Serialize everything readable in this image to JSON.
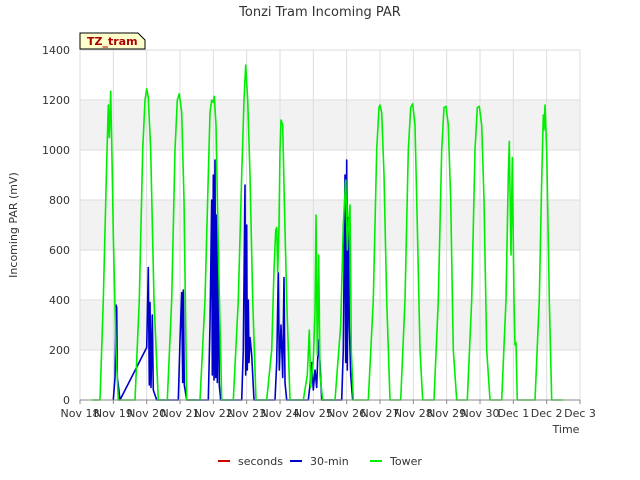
{
  "chart_data": {
    "type": "line",
    "title": "Tonzi Tram Incoming PAR",
    "xlabel": "Time",
    "ylabel": "Incoming PAR (mV)",
    "site_tag": "TZ_tram",
    "xlim": [
      0,
      15
    ],
    "ylim": [
      0,
      1400
    ],
    "x_ticks": [
      0,
      1,
      2,
      3,
      4,
      5,
      6,
      7,
      8,
      9,
      10,
      11,
      12,
      13,
      14,
      15
    ],
    "x_tick_labels": [
      "Nov 18",
      "Nov 19",
      "Nov 20",
      "Nov 21",
      "Nov 22",
      "Nov 23",
      "Nov 24",
      "Nov 25",
      "Nov 26",
      "Nov 27",
      "Nov 28",
      "Nov 29",
      "Nov 30",
      "Dec 1",
      "Dec 2",
      "Dec 3"
    ],
    "y_ticks": [
      0,
      200,
      400,
      600,
      800,
      1000,
      1200,
      1400
    ],
    "grid": true,
    "legend_position": "bottom",
    "series": [
      {
        "name": "seconds",
        "color": "#cc0000",
        "points": []
      },
      {
        "name": "30-min",
        "color": "#0000cc",
        "points": [
          [
            1.0,
            0
          ],
          [
            1.05,
            90
          ],
          [
            1.08,
            380
          ],
          [
            1.1,
            370
          ],
          [
            1.12,
            90
          ],
          [
            1.15,
            60
          ],
          [
            1.2,
            0
          ],
          [
            2.0,
            210
          ],
          [
            2.05,
            530
          ],
          [
            2.08,
            60
          ],
          [
            2.1,
            390
          ],
          [
            2.13,
            50
          ],
          [
            2.17,
            340
          ],
          [
            2.2,
            40
          ],
          [
            2.3,
            0
          ],
          [
            2.95,
            0
          ],
          [
            3.0,
            240
          ],
          [
            3.05,
            430
          ],
          [
            3.08,
            70
          ],
          [
            3.1,
            440
          ],
          [
            3.13,
            60
          ],
          [
            3.2,
            0
          ],
          [
            3.85,
            0
          ],
          [
            3.9,
            300
          ],
          [
            3.95,
            800
          ],
          [
            3.97,
            100
          ],
          [
            4.0,
            900
          ],
          [
            4.02,
            80
          ],
          [
            4.05,
            960
          ],
          [
            4.07,
            90
          ],
          [
            4.1,
            740
          ],
          [
            4.12,
            70
          ],
          [
            4.15,
            610
          ],
          [
            4.18,
            60
          ],
          [
            4.22,
            0
          ],
          [
            4.85,
            0
          ],
          [
            4.9,
            200
          ],
          [
            4.95,
            860
          ],
          [
            4.97,
            100
          ],
          [
            5.0,
            700
          ],
          [
            5.02,
            120
          ],
          [
            5.05,
            400
          ],
          [
            5.07,
            150
          ],
          [
            5.1,
            250
          ],
          [
            5.15,
            180
          ],
          [
            5.22,
            0
          ],
          [
            5.85,
            0
          ],
          [
            5.9,
            150
          ],
          [
            5.95,
            510
          ],
          [
            5.98,
            120
          ],
          [
            6.03,
            300
          ],
          [
            6.08,
            90
          ],
          [
            6.12,
            490
          ],
          [
            6.15,
            70
          ],
          [
            6.2,
            0
          ],
          [
            6.85,
            0
          ],
          [
            6.9,
            60
          ],
          [
            6.95,
            150
          ],
          [
            7.0,
            40
          ],
          [
            7.05,
            120
          ],
          [
            7.1,
            50
          ],
          [
            7.15,
            240
          ],
          [
            7.2,
            150
          ],
          [
            7.25,
            0
          ],
          [
            7.85,
            0
          ],
          [
            7.9,
            200
          ],
          [
            7.95,
            900
          ],
          [
            7.97,
            150
          ],
          [
            8.0,
            960
          ],
          [
            8.02,
            120
          ],
          [
            8.05,
            730
          ],
          [
            8.08,
            300
          ],
          [
            8.12,
            100
          ],
          [
            8.18,
            0
          ]
        ]
      },
      {
        "name": "Tower",
        "color": "#00ee00",
        "points": [
          [
            0.35,
            0
          ],
          [
            0.6,
            0
          ],
          [
            0.7,
            400
          ],
          [
            0.8,
            950
          ],
          [
            0.85,
            1180
          ],
          [
            0.88,
            1050
          ],
          [
            0.92,
            1235
          ],
          [
            0.97,
            900
          ],
          [
            1.0,
            660
          ],
          [
            1.08,
            200
          ],
          [
            1.15,
            0
          ],
          [
            1.65,
            0
          ],
          [
            1.78,
            400
          ],
          [
            1.88,
            1000
          ],
          [
            1.95,
            1200
          ],
          [
            2.0,
            1245
          ],
          [
            2.05,
            1210
          ],
          [
            2.12,
            1000
          ],
          [
            2.22,
            400
          ],
          [
            2.35,
            0
          ],
          [
            2.62,
            0
          ],
          [
            2.75,
            400
          ],
          [
            2.85,
            1000
          ],
          [
            2.92,
            1200
          ],
          [
            2.98,
            1225
          ],
          [
            3.05,
            1150
          ],
          [
            3.12,
            800
          ],
          [
            3.2,
            0
          ],
          [
            3.6,
            0
          ],
          [
            3.75,
            400
          ],
          [
            3.85,
            900
          ],
          [
            3.9,
            1150
          ],
          [
            3.95,
            1200
          ],
          [
            4.0,
            1190
          ],
          [
            4.03,
            1215
          ],
          [
            4.08,
            1100
          ],
          [
            4.15,
            600
          ],
          [
            4.25,
            0
          ],
          [
            4.6,
            0
          ],
          [
            4.75,
            400
          ],
          [
            4.85,
            900
          ],
          [
            4.92,
            1200
          ],
          [
            4.97,
            1340
          ],
          [
            5.03,
            1200
          ],
          [
            5.1,
            900
          ],
          [
            5.18,
            400
          ],
          [
            5.28,
            0
          ],
          [
            5.6,
            0
          ],
          [
            5.75,
            200
          ],
          [
            5.82,
            520
          ],
          [
            5.87,
            680
          ],
          [
            5.9,
            690
          ],
          [
            5.93,
            510
          ],
          [
            5.97,
            700
          ],
          [
            6.0,
            1000
          ],
          [
            6.03,
            1120
          ],
          [
            6.08,
            1100
          ],
          [
            6.13,
            800
          ],
          [
            6.2,
            400
          ],
          [
            6.3,
            0
          ],
          [
            6.7,
            0
          ],
          [
            6.82,
            100
          ],
          [
            6.88,
            280
          ],
          [
            6.92,
            50
          ],
          [
            7.0,
            160
          ],
          [
            7.05,
            350
          ],
          [
            7.08,
            740
          ],
          [
            7.12,
            180
          ],
          [
            7.16,
            580
          ],
          [
            7.2,
            100
          ],
          [
            7.28,
            0
          ],
          [
            7.65,
            0
          ],
          [
            7.82,
            300
          ],
          [
            7.9,
            700
          ],
          [
            7.97,
            880
          ],
          [
            8.02,
            600
          ],
          [
            8.06,
            720
          ],
          [
            8.1,
            780
          ],
          [
            8.14,
            200
          ],
          [
            8.2,
            0
          ],
          [
            8.65,
            0
          ],
          [
            8.8,
            400
          ],
          [
            8.9,
            1000
          ],
          [
            8.97,
            1170
          ],
          [
            9.0,
            1180
          ],
          [
            9.05,
            1150
          ],
          [
            9.12,
            900
          ],
          [
            9.2,
            400
          ],
          [
            9.3,
            0
          ],
          [
            9.62,
            0
          ],
          [
            9.75,
            400
          ],
          [
            9.85,
            1000
          ],
          [
            9.92,
            1170
          ],
          [
            9.98,
            1185
          ],
          [
            10.05,
            1100
          ],
          [
            10.12,
            700
          ],
          [
            10.2,
            200
          ],
          [
            10.28,
            0
          ],
          [
            10.62,
            0
          ],
          [
            10.75,
            400
          ],
          [
            10.85,
            1000
          ],
          [
            10.92,
            1170
          ],
          [
            10.98,
            1175
          ],
          [
            11.05,
            1100
          ],
          [
            11.12,
            800
          ],
          [
            11.2,
            200
          ],
          [
            11.3,
            0
          ],
          [
            11.62,
            0
          ],
          [
            11.75,
            400
          ],
          [
            11.85,
            1000
          ],
          [
            11.92,
            1170
          ],
          [
            11.98,
            1175
          ],
          [
            12.05,
            1100
          ],
          [
            12.12,
            800
          ],
          [
            12.2,
            200
          ],
          [
            12.3,
            0
          ],
          [
            12.65,
            0
          ],
          [
            12.78,
            400
          ],
          [
            12.85,
            900
          ],
          [
            12.88,
            1035
          ],
          [
            12.93,
            580
          ],
          [
            12.97,
            970
          ],
          [
            13.02,
            400
          ],
          [
            13.05,
            220
          ],
          [
            13.08,
            230
          ],
          [
            13.12,
            0
          ],
          [
            13.65,
            0
          ],
          [
            13.78,
            400
          ],
          [
            13.85,
            880
          ],
          [
            13.9,
            1140
          ],
          [
            13.92,
            1080
          ],
          [
            13.95,
            1180
          ],
          [
            14.0,
            1000
          ],
          [
            14.08,
            400
          ],
          [
            14.15,
            0
          ],
          [
            14.5,
            0
          ]
        ]
      }
    ]
  }
}
